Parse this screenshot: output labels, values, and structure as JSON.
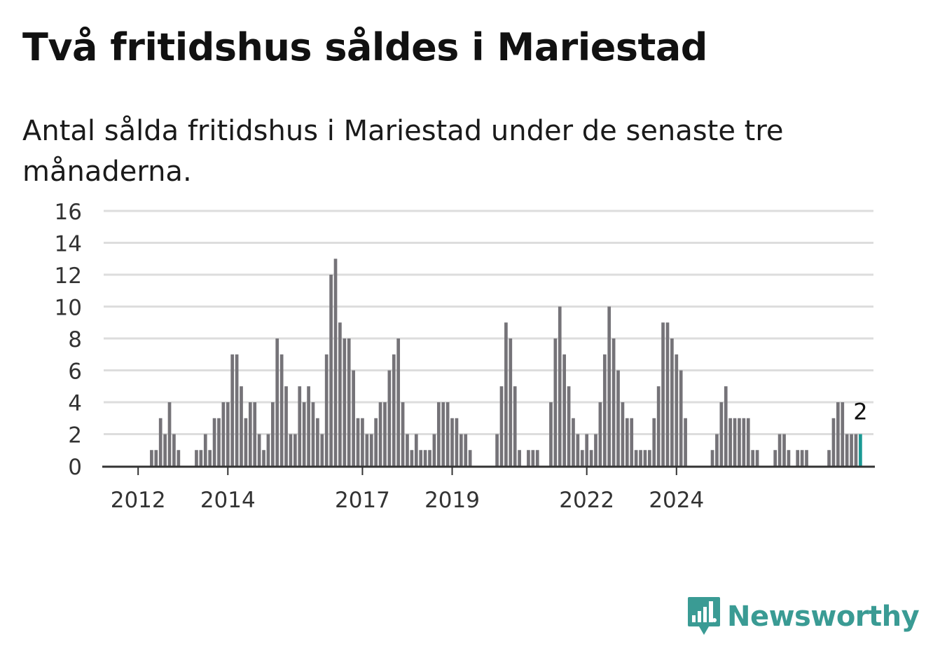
{
  "title": "Två fritidshus såldes i Mariestad",
  "subtitle": "Antal sålda fritidshus i Mariestad under de senaste tre månaderna.",
  "brand": {
    "name": "Newsworthy",
    "color": "#3a9b94",
    "icon": "newsworthy-logo-icon"
  },
  "colors": {
    "bar": "#757378",
    "highlight": "#1a9994",
    "grid": "#dddddd",
    "axis": "#333333"
  },
  "chart_data": {
    "type": "bar",
    "ylim": [
      0,
      16
    ],
    "yticks": [
      0,
      2,
      4,
      6,
      8,
      10,
      12,
      14,
      16
    ],
    "xticks": [
      "2012",
      "2014",
      "2017",
      "2019",
      "2022",
      "2024"
    ],
    "xtick_index": [
      7,
      27,
      57,
      77,
      107,
      127
    ],
    "start": "2011-05",
    "grid": true,
    "values": [
      0,
      0,
      0,
      0,
      0,
      0,
      0,
      0,
      0,
      0,
      1,
      1,
      3,
      2,
      4,
      2,
      1,
      0,
      0,
      0,
      1,
      1,
      2,
      1,
      3,
      3,
      4,
      4,
      7,
      7,
      5,
      3,
      4,
      4,
      2,
      1,
      2,
      4,
      8,
      7,
      5,
      2,
      2,
      5,
      4,
      5,
      4,
      3,
      2,
      7,
      12,
      13,
      9,
      8,
      8,
      6,
      3,
      3,
      2,
      2,
      3,
      4,
      4,
      6,
      7,
      8,
      4,
      2,
      1,
      2,
      1,
      1,
      1,
      2,
      4,
      4,
      4,
      3,
      3,
      2,
      2,
      1,
      0,
      0,
      0,
      0,
      0,
      2,
      5,
      9,
      8,
      5,
      1,
      0,
      1,
      1,
      1,
      0,
      0,
      4,
      8,
      10,
      7,
      5,
      3,
      2,
      1,
      2,
      1,
      2,
      4,
      7,
      10,
      8,
      6,
      4,
      3,
      3,
      1,
      1,
      1,
      1,
      3,
      5,
      9,
      9,
      8,
      7,
      6,
      3,
      0,
      0,
      0,
      0,
      0,
      1,
      2,
      4,
      5,
      3,
      3,
      3,
      3,
      3,
      1,
      1,
      0,
      0,
      0,
      1,
      2,
      2,
      1,
      0,
      1,
      1,
      1,
      0,
      0,
      0,
      0,
      1,
      3,
      4,
      4,
      2,
      2,
      2,
      2
    ],
    "last_label": "2",
    "highlight_last": true
  }
}
